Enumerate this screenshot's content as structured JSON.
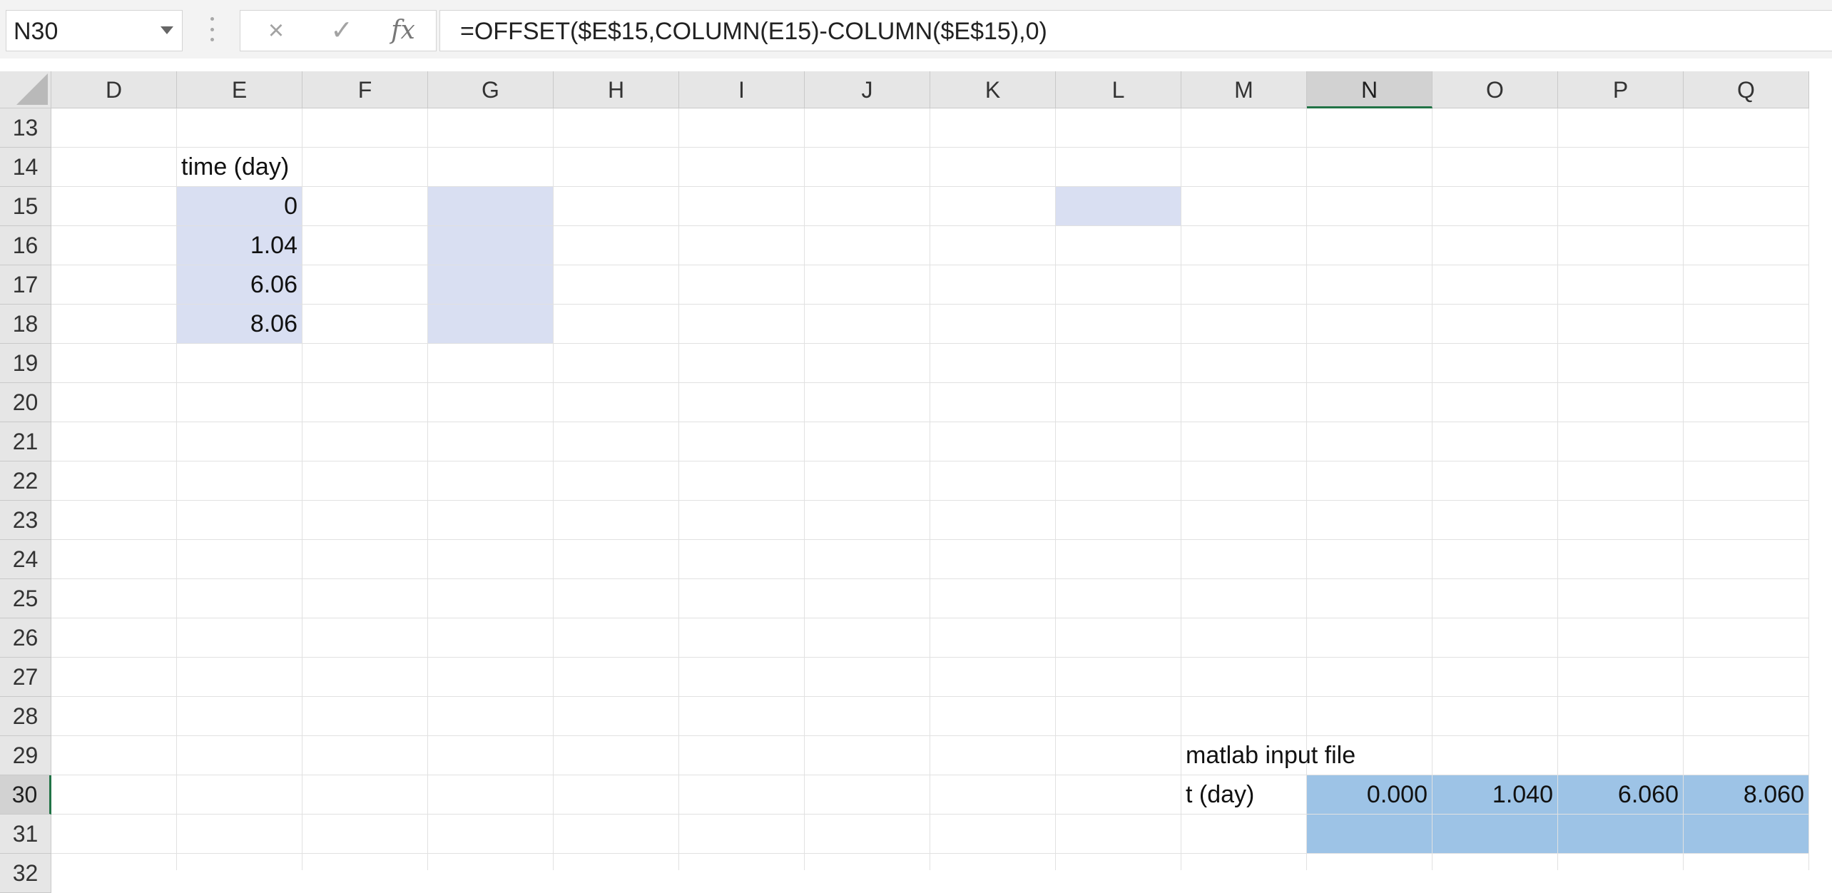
{
  "formula_bar": {
    "name_box": "N30",
    "cancel_icon": "×",
    "enter_icon": "✓",
    "fx_label": "fx",
    "formula": "=OFFSET($E$15,COLUMN(E15)-COLUMN($E$15),0)"
  },
  "columns": [
    "D",
    "E",
    "F",
    "G",
    "H",
    "I",
    "J",
    "K",
    "L",
    "M",
    "N",
    "O",
    "P",
    "Q"
  ],
  "selected_column": "N",
  "rows": [
    "13",
    "14",
    "15",
    "16",
    "17",
    "18",
    "19",
    "20",
    "21",
    "22",
    "23",
    "24",
    "25",
    "26",
    "27",
    "28",
    "29",
    "30",
    "31",
    "32"
  ],
  "selected_row": "30",
  "cells": {
    "E14": "time (day)",
    "E15": "0",
    "E16": "1.04",
    "E17": "6.06",
    "E18": "8.06",
    "M29": "matlab input file",
    "M30": "t (day)",
    "N30": "0.000",
    "O30": "1.040",
    "P30": "6.060",
    "Q30": "8.060"
  },
  "fills": {
    "lavender": [
      "E15",
      "E16",
      "E17",
      "E18",
      "G15",
      "G16",
      "G17",
      "G18",
      "L15"
    ],
    "blue": [
      "N30",
      "O30",
      "P30",
      "Q30",
      "N31",
      "O31",
      "P31",
      "Q31"
    ],
    "lavender_hex": "#d9dff2",
    "blue_hex": "#9dc3e6"
  },
  "number_cells": [
    "E15",
    "E16",
    "E17",
    "E18",
    "N30",
    "O30",
    "P30",
    "Q30"
  ]
}
